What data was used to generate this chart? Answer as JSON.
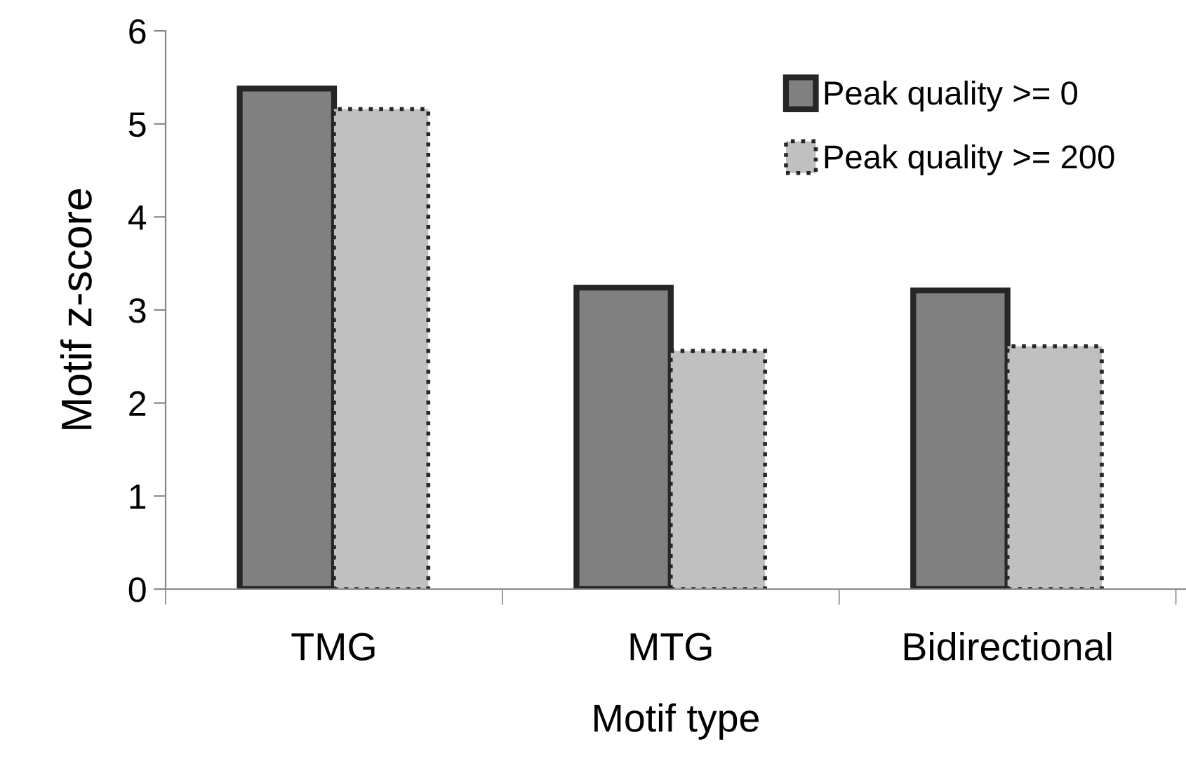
{
  "chart_data": {
    "type": "bar",
    "xlabel": "Motif type",
    "ylabel": "Motif z-score",
    "categories": [
      "TMG",
      "MTG",
      "Bidirectional"
    ],
    "series": [
      {
        "name": "Peak quality >= 0",
        "color": "#808080",
        "line_style": "solid",
        "values": [
          5.38,
          3.24,
          3.21
        ]
      },
      {
        "name": "Peak quality >= 200",
        "color": "#c0c0c0",
        "line_style": "dotted",
        "values": [
          5.16,
          2.56,
          2.61
        ]
      }
    ],
    "ylim": [
      0,
      6
    ],
    "yticks": [
      0,
      1,
      2,
      3,
      4,
      5,
      6
    ],
    "grid": false,
    "legend": "top right"
  }
}
